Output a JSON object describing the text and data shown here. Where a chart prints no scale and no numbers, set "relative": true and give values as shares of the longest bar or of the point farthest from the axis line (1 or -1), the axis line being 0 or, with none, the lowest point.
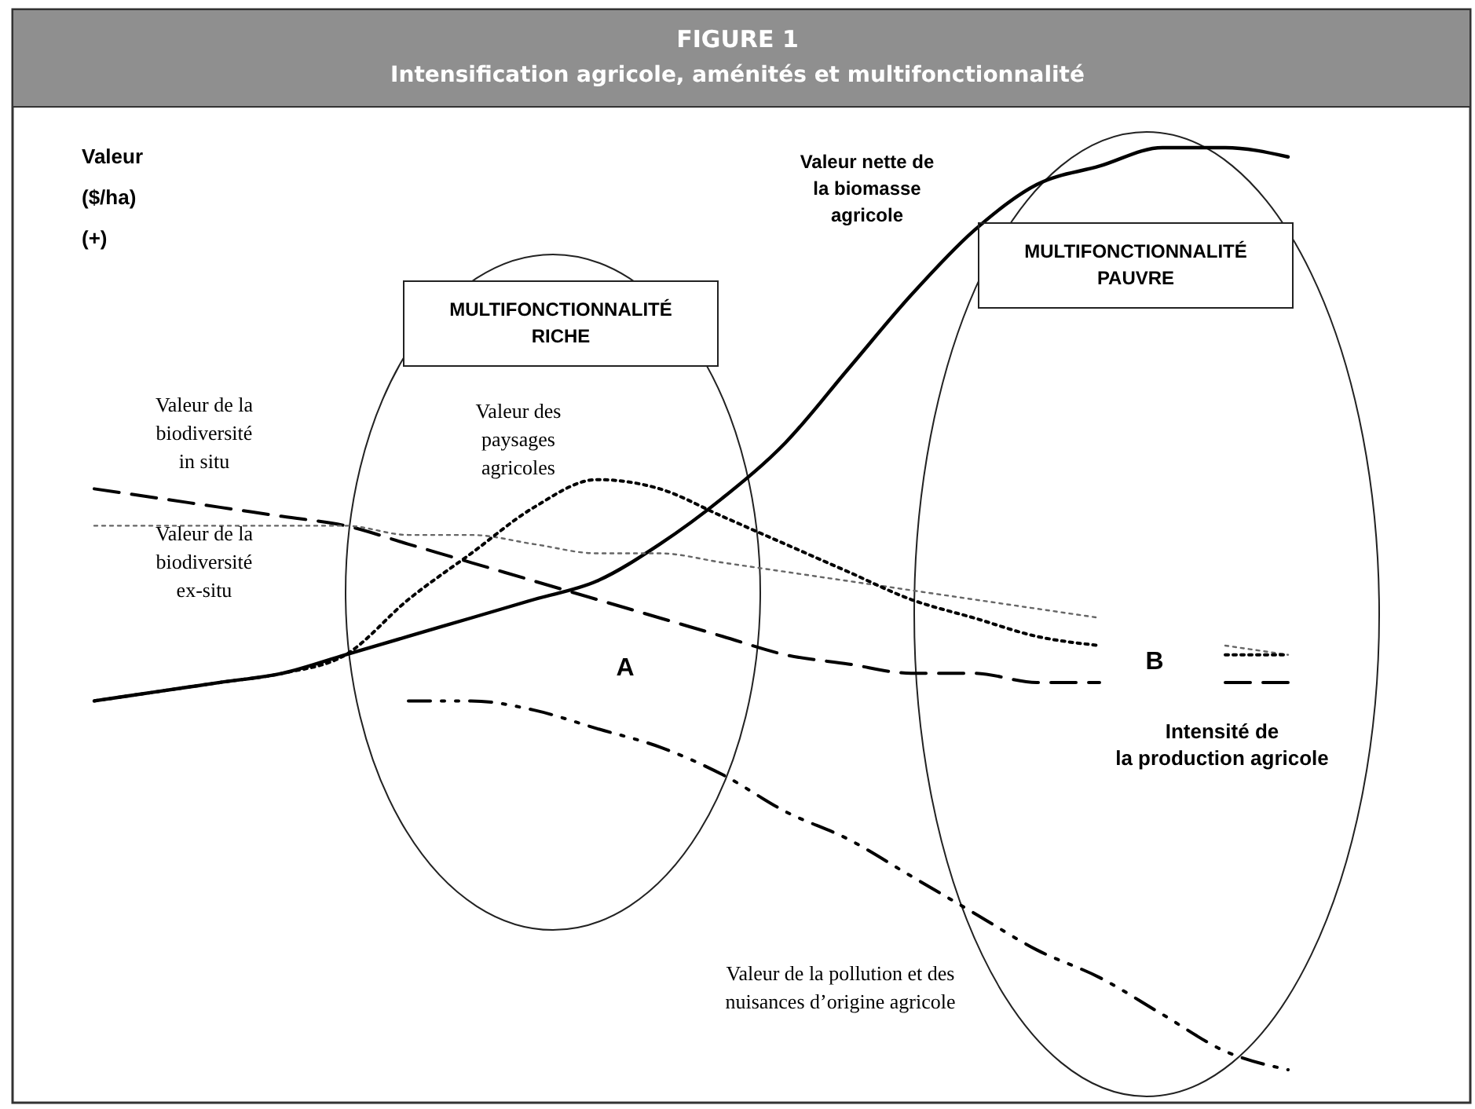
{
  "chart_data": {
    "type": "line",
    "title": "FIGURE 1",
    "subtitle": "Intensification agricole, aménités et multifonctionnalité",
    "xlabel": "Intensité de la production agricole",
    "ylabel": "Valeur ($/ha) (+)",
    "relative": true,
    "legend": false,
    "grid": false,
    "tick_labels": false,
    "categories": [
      null,
      null,
      null,
      null,
      null,
      null,
      null,
      null,
      null,
      null,
      null,
      null,
      null,
      null,
      null,
      null,
      null,
      null,
      null,
      null
    ],
    "series": [
      {
        "name": "Valeur nette de la biomasse agricole",
        "color": "#000000",
        "line_style": "solid",
        "values": [
          0.4,
          0.41,
          0.42,
          0.43,
          0.45,
          0.47,
          0.49,
          0.51,
          0.53,
          0.57,
          0.62,
          0.68,
          0.76,
          0.84,
          0.91,
          0.96,
          0.98,
          1.0,
          1.0,
          0.99
        ]
      },
      {
        "name": "Valeur de la biodiversité in situ",
        "color": "#000000",
        "line_style": "dashed",
        "values": [
          0.63,
          0.62,
          0.61,
          0.6,
          0.59,
          0.57,
          0.55,
          0.53,
          0.51,
          0.49,
          0.47,
          0.45,
          0.44,
          0.43,
          0.43,
          0.42,
          0.42,
          null,
          0.42,
          0.42
        ]
      },
      {
        "name": "Valeur de la biodiversité ex-situ",
        "color": "#666666",
        "line_style": "dotted",
        "values": [
          0.59,
          0.59,
          0.59,
          0.59,
          0.59,
          0.58,
          0.58,
          0.57,
          0.56,
          0.56,
          0.55,
          0.54,
          0.53,
          0.52,
          0.51,
          0.5,
          0.49,
          null,
          0.46,
          0.45
        ]
      },
      {
        "name": "Valeur des paysages agricoles",
        "color": "#000000",
        "line_style": "dotted",
        "values": [
          0.4,
          0.41,
          0.42,
          0.43,
          0.45,
          0.51,
          0.56,
          0.61,
          0.64,
          0.63,
          0.6,
          0.57,
          0.54,
          0.51,
          0.49,
          0.47,
          0.46,
          null,
          0.45,
          0.45
        ]
      },
      {
        "name": "Valeur de la pollution et des nuisances d’origine agricole",
        "color": "#000000",
        "line_style": "dashdot",
        "values": [
          null,
          null,
          null,
          null,
          null,
          0.4,
          0.4,
          0.39,
          0.37,
          0.35,
          0.32,
          0.28,
          0.25,
          0.21,
          0.17,
          0.13,
          0.1,
          0.06,
          0.02,
          0.0
        ]
      }
    ],
    "annotations": [
      "MULTIFONCTIONNALITÉ RICHE",
      "MULTIFONCTIONNALITÉ PAUVRE",
      "A",
      "B"
    ]
  }
}
